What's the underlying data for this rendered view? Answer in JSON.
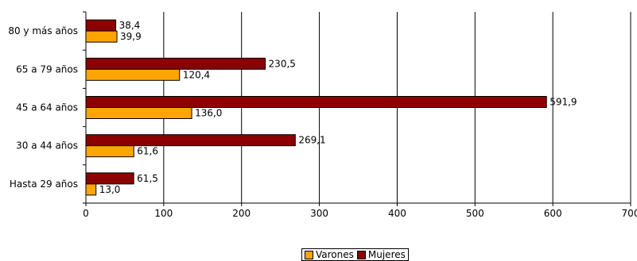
{
  "chart_data": {
    "type": "bar",
    "orientation": "horizontal",
    "title": "",
    "xlabel": "",
    "ylabel": "",
    "xlim": [
      0,
      700
    ],
    "x_ticks": [
      "0",
      "100",
      "200",
      "300",
      "400",
      "500",
      "600",
      "700"
    ],
    "grid": true,
    "legend_position": "bottom",
    "categories": [
      "80 y más años",
      "65 a 79 años",
      "45 a 64 años",
      "30 a 44 años",
      "Hasta 29 años"
    ],
    "series": [
      {
        "name": "Mujeres",
        "color": "#8b0000",
        "values": [
          38.4,
          230.5,
          591.9,
          269.1,
          61.5
        ],
        "labels": [
          "38,4",
          "230,5",
          "591,9",
          "269,1",
          "61,5"
        ]
      },
      {
        "name": "Varones",
        "color": "#ffa500",
        "values": [
          39.9,
          120.4,
          136.0,
          61.6,
          13.0
        ],
        "labels": [
          "39,9",
          "120,4",
          "136,0",
          "61,6",
          "13,0"
        ]
      }
    ]
  },
  "legend": {
    "varones_label": "Varones",
    "mujeres_label": "Mujeres"
  }
}
